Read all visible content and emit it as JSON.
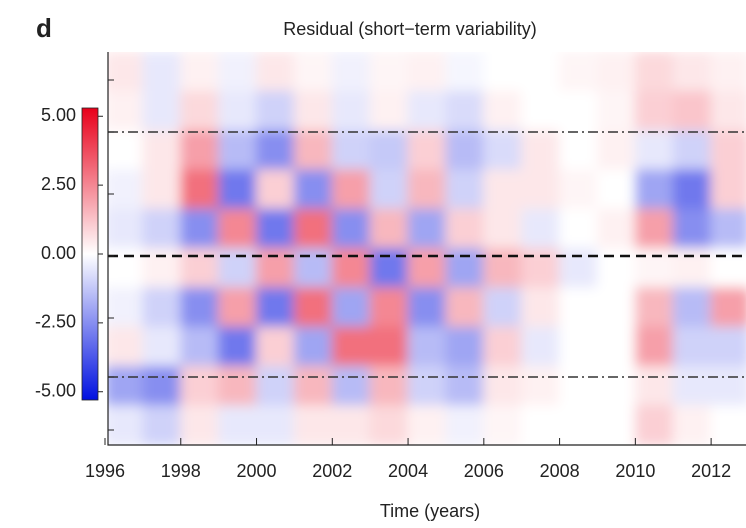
{
  "chart_data": {
    "type": "heatmap",
    "panel_label": "d",
    "title": "Residual (short−term variability)",
    "xlabel": "Time (years)",
    "x": [
      1996,
      1997,
      1998,
      1999,
      2000,
      2001,
      2002,
      2003,
      2004,
      2005,
      2006,
      2007,
      2008,
      2009,
      2010,
      2011,
      2012
    ],
    "xlim": [
      1996,
      2013
    ],
    "xticks": [
      1996,
      1998,
      2000,
      2002,
      2004,
      2006,
      2008,
      2010,
      2012
    ],
    "z": [
      [
        0.5,
        -0.5,
        0.3,
        -0.3,
        0.5,
        0.2,
        -0.3,
        0.2,
        0.3,
        -0.2,
        0,
        0,
        0.2,
        0.3,
        0.8,
        0.5,
        0.3
      ],
      [
        0.3,
        -0.5,
        0.8,
        -0.5,
        -1,
        0.5,
        -0.5,
        0.3,
        -0.5,
        -0.8,
        0.3,
        0,
        0,
        0.2,
        1,
        1.2,
        0.5
      ],
      [
        0,
        0.5,
        2,
        -1.5,
        -2.5,
        1.5,
        -1,
        -1.2,
        1,
        -1.5,
        -0.8,
        0.5,
        0,
        0.3,
        -0.5,
        -1,
        1
      ],
      [
        -0.3,
        0.5,
        3,
        -3,
        1,
        -2.5,
        2,
        -1,
        1.5,
        -1,
        0.5,
        0.5,
        0.2,
        0,
        -2,
        -3,
        1
      ],
      [
        -0.5,
        -1,
        -2.5,
        2.5,
        -3,
        3,
        -2.5,
        1.5,
        -2,
        1,
        0.5,
        -0.5,
        0,
        0.3,
        2,
        -2.5,
        -1.5
      ],
      [
        0,
        0.3,
        1,
        -1,
        2,
        -1.5,
        2.5,
        -3,
        2,
        -2,
        1.5,
        1,
        -0.5,
        0,
        0.2,
        0.3,
        0
      ],
      [
        -0.3,
        -1,
        -2.5,
        2,
        -3,
        3,
        -2,
        2.5,
        -2.5,
        1.5,
        -1,
        0.5,
        0,
        0,
        1.5,
        -1.5,
        2
      ],
      [
        0.5,
        -0.5,
        -1.5,
        -3,
        1,
        -2,
        3,
        3,
        -1.5,
        -2,
        1,
        -0.5,
        0,
        0,
        2,
        -1,
        -1
      ],
      [
        -2,
        -2.5,
        1,
        1.5,
        -1,
        1.5,
        -1.5,
        1.5,
        -1,
        -1.5,
        0.5,
        0.3,
        0,
        0,
        0.5,
        -0.5,
        -0.5
      ],
      [
        -0.5,
        -1,
        0.5,
        -0.5,
        -0.5,
        0.5,
        0.5,
        0.8,
        0.3,
        -0.3,
        0.2,
        0,
        0,
        0,
        1,
        0.3,
        0
      ]
    ],
    "colorbar": {
      "lim": [
        -5.3,
        5.3
      ],
      "ticks": [
        {
          "value": 5,
          "label": "5.00"
        },
        {
          "value": 2.5,
          "label": "2.50"
        },
        {
          "value": 0,
          "label": "0.00"
        },
        {
          "value": -2.5,
          "label": "-2.50"
        },
        {
          "value": -5,
          "label": "-5.00"
        }
      ],
      "colors": [
        "#0010e0",
        "#ffffff",
        "#e8001a"
      ]
    }
  }
}
